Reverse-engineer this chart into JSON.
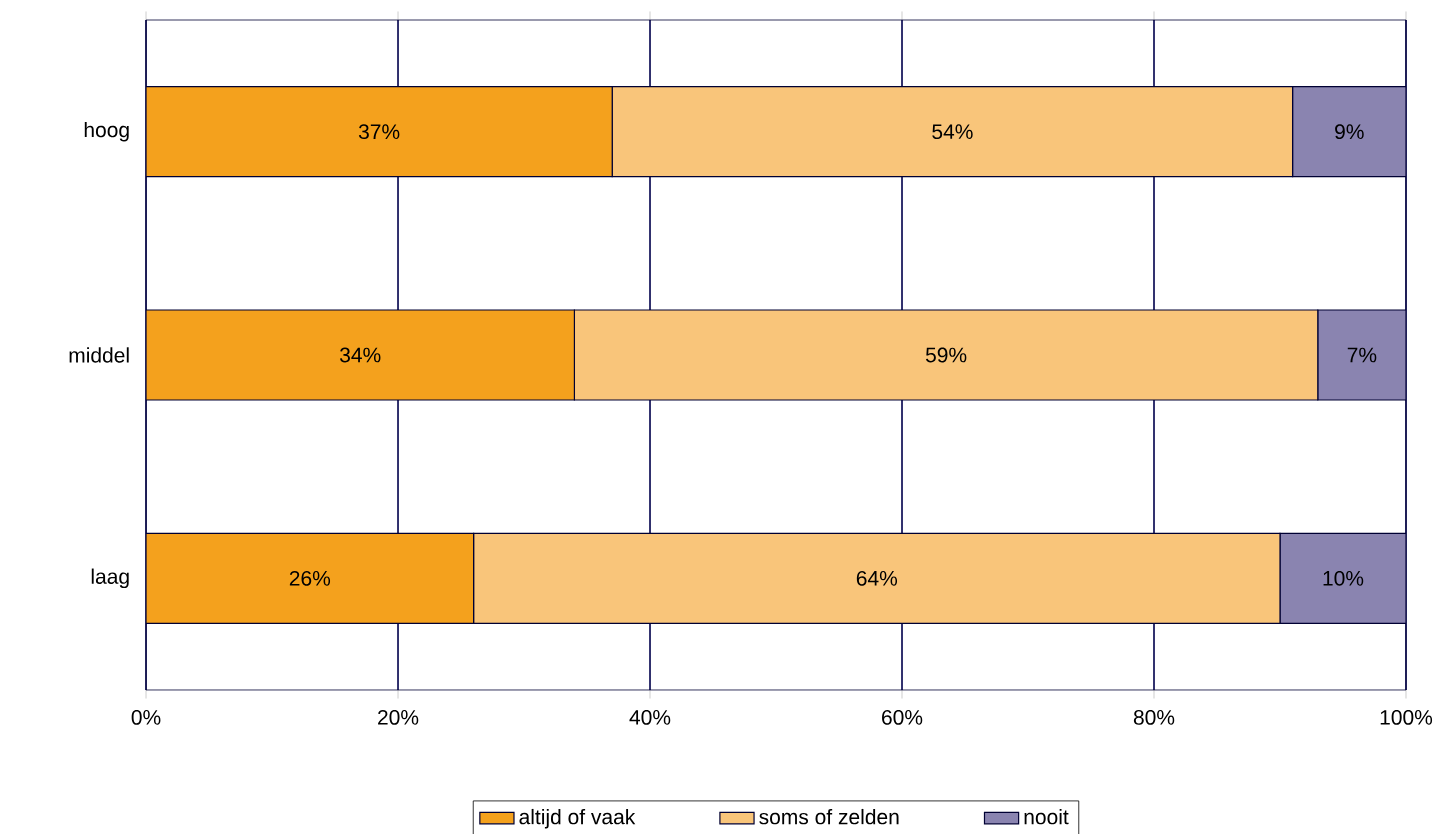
{
  "chart_data": {
    "type": "bar",
    "orientation": "horizontal",
    "stacked": true,
    "categories": [
      "hoog",
      "middel",
      "laag"
    ],
    "series": [
      {
        "name": "altijd of vaak",
        "color": "#f4a11d",
        "values": [
          37,
          34,
          26
        ],
        "value_labels": [
          "37%",
          "34%",
          "26%"
        ]
      },
      {
        "name": "soms of zelden",
        "color": "#f9c57a",
        "values": [
          54,
          59,
          64
        ],
        "value_labels": [
          "54%",
          "59%",
          "64%"
        ]
      },
      {
        "name": "nooit",
        "color": "#8a84b0",
        "values": [
          9,
          7,
          10
        ],
        "value_labels": [
          "9%",
          "7%",
          "10%"
        ]
      }
    ],
    "xlim": [
      0,
      100
    ],
    "xticks": [
      {
        "value": 0,
        "label": "0%"
      },
      {
        "value": 20,
        "label": "20%"
      },
      {
        "value": 40,
        "label": "40%"
      },
      {
        "value": 60,
        "label": "60%"
      },
      {
        "value": 80,
        "label": "80%"
      },
      {
        "value": 100,
        "label": "100%"
      }
    ],
    "grid": "x",
    "legend": "bottom"
  }
}
